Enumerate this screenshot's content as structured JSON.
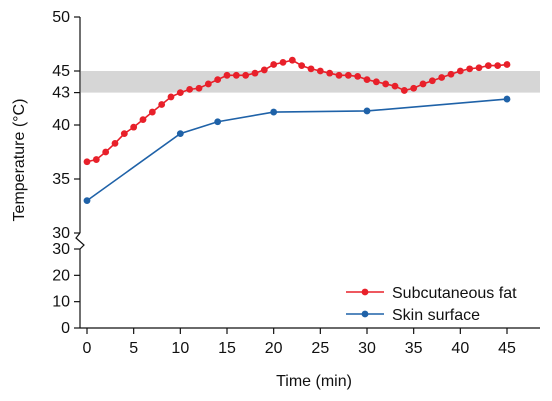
{
  "chart_data": {
    "type": "line",
    "xlabel": "Time (min)",
    "ylabel": "Temperature (°C)",
    "x_ticks": [
      0,
      5,
      10,
      15,
      20,
      25,
      30,
      35,
      40,
      45
    ],
    "upper_panel": {
      "ylim": [
        30,
        50
      ],
      "y_ticks": [
        30,
        35,
        40,
        43,
        45,
        50
      ]
    },
    "lower_panel": {
      "ylim": [
        0,
        30
      ],
      "y_ticks": [
        0,
        10,
        20,
        30
      ]
    },
    "axis_break": true,
    "shaded_band": {
      "y_from": 43,
      "y_to": 45,
      "color": "#d6d6d6"
    },
    "legend_position": "bottom-right",
    "series": [
      {
        "name": "Subcutaneous fat",
        "color": "#e8202a",
        "x": [
          0,
          1,
          2,
          3,
          4,
          5,
          6,
          7,
          8,
          9,
          10,
          11,
          12,
          13,
          14,
          15,
          16,
          17,
          18,
          19,
          20,
          21,
          22,
          23,
          24,
          25,
          26,
          27,
          28,
          29,
          30,
          31,
          32,
          33,
          34,
          35,
          36,
          37,
          38,
          39,
          40,
          41,
          42,
          43,
          44,
          45
        ],
        "y": [
          36.6,
          36.8,
          37.5,
          38.3,
          39.2,
          39.8,
          40.5,
          41.2,
          41.9,
          42.6,
          43.0,
          43.3,
          43.4,
          43.8,
          44.2,
          44.6,
          44.6,
          44.6,
          44.8,
          45.1,
          45.6,
          45.8,
          46.0,
          45.5,
          45.2,
          45.0,
          44.8,
          44.6,
          44.6,
          44.5,
          44.2,
          44.0,
          43.8,
          43.6,
          43.2,
          43.4,
          43.8,
          44.1,
          44.4,
          44.7,
          45.0,
          45.2,
          45.3,
          45.5,
          45.5,
          45.6
        ]
      },
      {
        "name": "Skin surface",
        "color": "#1f62a8",
        "x": [
          0,
          10,
          14,
          20,
          30,
          45
        ],
        "y": [
          33.0,
          39.2,
          40.3,
          41.2,
          41.3,
          42.4
        ]
      }
    ]
  }
}
